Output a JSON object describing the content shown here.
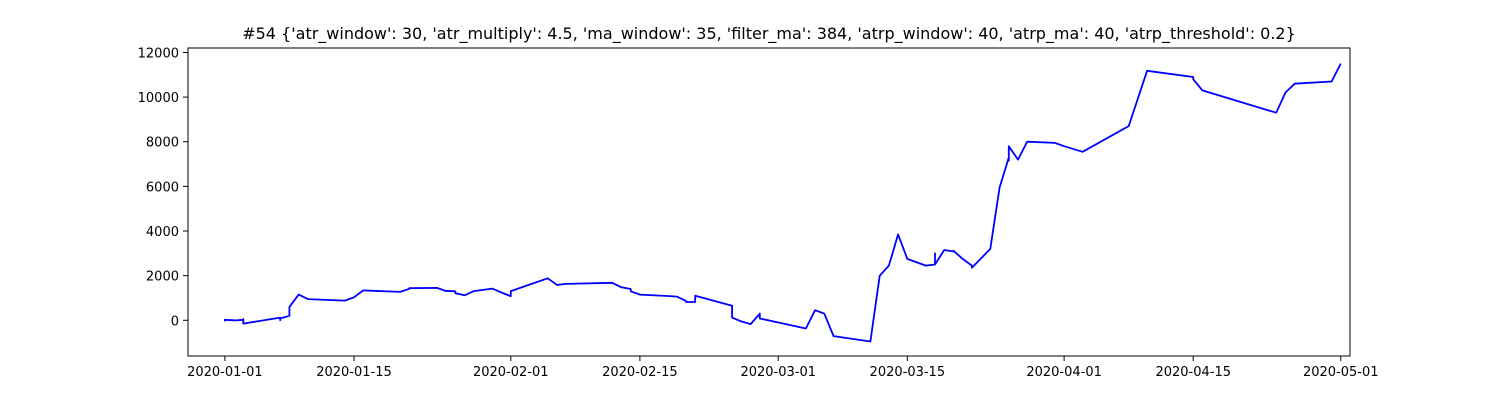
{
  "chart_data": {
    "type": "line",
    "title": "#54 {'atr_window': 30, 'atr_multiply': 4.5, 'ma_window': 35, 'filter_ma': 384, 'atrp_window': 40, 'atrp_ma': 40, 'atrp_threshold': 0.2}",
    "xlabel": "",
    "ylabel": "",
    "grid": false,
    "legend": "none",
    "xlim": [
      "2019-12-28",
      "2020-05-02"
    ],
    "ylim": [
      -1600,
      12200
    ],
    "x_ticks": [
      "2020-01-01",
      "2020-01-15",
      "2020-02-01",
      "2020-02-15",
      "2020-03-01",
      "2020-03-15",
      "2020-04-01",
      "2020-04-15",
      "2020-05-01"
    ],
    "y_ticks": [
      0,
      2000,
      4000,
      6000,
      8000,
      10000,
      12000
    ],
    "series": [
      {
        "color": "#0000ff",
        "x": [
          "2020-01-01",
          "2020-01-01",
          "2020-01-01",
          "2020-01-01",
          "2020-01-02",
          "2020-01-02",
          "2020-01-02",
          "2020-01-03",
          "2020-01-03",
          "2020-01-03",
          "2020-01-03",
          "2020-01-07",
          "2020-01-07",
          "2020-01-07",
          "2020-01-08",
          "2020-01-08",
          "2020-01-08",
          "2020-01-09",
          "2020-01-10",
          "2020-01-14",
          "2020-01-15",
          "2020-01-15",
          "2020-01-16",
          "2020-01-20",
          "2020-01-21",
          "2020-01-21",
          "2020-01-24",
          "2020-01-25",
          "2020-01-25",
          "2020-01-26",
          "2020-01-26",
          "2020-01-27",
          "2020-01-28",
          "2020-01-30",
          "2020-01-31",
          "2020-02-01",
          "2020-02-01",
          "2020-02-05",
          "2020-02-06",
          "2020-02-06",
          "2020-02-07",
          "2020-02-12",
          "2020-02-13",
          "2020-02-14",
          "2020-02-14",
          "2020-02-15",
          "2020-02-18",
          "2020-02-19",
          "2020-02-20",
          "2020-02-20",
          "2020-02-21",
          "2020-02-21",
          "2020-02-25",
          "2020-02-25",
          "2020-02-26",
          "2020-02-27",
          "2020-02-28",
          "2020-02-28",
          "2020-02-28",
          "2020-03-04",
          "2020-03-05",
          "2020-03-06",
          "2020-03-07",
          "2020-03-11",
          "2020-03-12",
          "2020-03-13",
          "2020-03-14",
          "2020-03-15",
          "2020-03-17",
          "2020-03-18",
          "2020-03-18",
          "2020-03-18",
          "2020-03-19",
          "2020-03-20",
          "2020-03-20",
          "2020-03-20",
          "2020-03-21",
          "2020-03-22",
          "2020-03-22",
          "2020-03-24",
          "2020-03-25",
          "2020-03-26",
          "2020-03-26",
          "2020-03-26",
          "2020-03-27",
          "2020-03-28",
          "2020-03-31",
          "2020-04-01",
          "2020-04-03",
          "2020-04-08",
          "2020-04-10",
          "2020-04-15",
          "2020-04-15",
          "2020-04-16",
          "2020-04-18",
          "2020-04-24",
          "2020-04-25",
          "2020-04-26",
          "2020-04-30",
          "2020-05-01"
        ],
        "y": [
          0,
          30,
          -20,
          20,
          0,
          10,
          -10,
          20,
          60,
          -30,
          -150,
          120,
          0,
          80,
          200,
          300,
          600,
          1150,
          950,
          880,
          1030,
          1030,
          1340,
          1270,
          1410,
          1440,
          1450,
          1310,
          1320,
          1300,
          1210,
          1120,
          1310,
          1420,
          1240,
          1080,
          1310,
          1880,
          1590,
          1580,
          1630,
          1680,
          1480,
          1400,
          1300,
          1150,
          1090,
          1060,
          870,
          820,
          820,
          1100,
          650,
          120,
          -50,
          -170,
          300,
          180,
          80,
          -370,
          450,
          300,
          -710,
          -950,
          2000,
          2450,
          3850,
          2750,
          2450,
          2500,
          3000,
          2500,
          3150,
          3080,
          3100,
          3120,
          2750,
          2450,
          2350,
          3200,
          5950,
          7300,
          7150,
          7800,
          7200,
          8000,
          7950,
          7800,
          7550,
          8700,
          11180,
          10900,
          10800,
          10300,
          10050,
          9300,
          10200,
          10600,
          10700,
          11500
        ]
      }
    ]
  }
}
